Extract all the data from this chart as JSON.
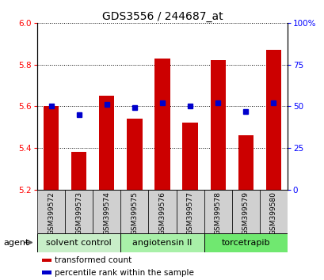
{
  "title": "GDS3556 / 244687_at",
  "samples": [
    "GSM399572",
    "GSM399573",
    "GSM399574",
    "GSM399575",
    "GSM399576",
    "GSM399577",
    "GSM399578",
    "GSM399579",
    "GSM399580"
  ],
  "transformed_counts": [
    5.6,
    5.38,
    5.65,
    5.54,
    5.83,
    5.52,
    5.82,
    5.46,
    5.87
  ],
  "percentile_ranks": [
    50,
    45,
    51,
    49,
    52,
    50,
    52,
    47,
    52
  ],
  "ylim_left": [
    5.2,
    6.0
  ],
  "ylim_right": [
    0,
    100
  ],
  "yticks_left": [
    5.2,
    5.4,
    5.6,
    5.8,
    6.0
  ],
  "ytick_labels_right": [
    "0",
    "25",
    "50",
    "75",
    "100%"
  ],
  "yticks_right": [
    0,
    25,
    50,
    75,
    100
  ],
  "bar_color": "#cc0000",
  "dot_color": "#0000cc",
  "groups": [
    {
      "label": "solvent control",
      "indices": [
        0,
        1,
        2
      ],
      "color": "#c8eec8"
    },
    {
      "label": "angiotensin II",
      "indices": [
        3,
        4,
        5
      ],
      "color": "#a8f0a8"
    },
    {
      "label": "torcetrapib",
      "indices": [
        6,
        7,
        8
      ],
      "color": "#70e870"
    }
  ],
  "agent_label": "agent",
  "legend_items": [
    {
      "label": "transformed count",
      "color": "#cc0000"
    },
    {
      "label": "percentile rank within the sample",
      "color": "#0000cc"
    }
  ],
  "bar_width": 0.55,
  "bar_bottom": 5.2,
  "label_bg": "#d0d0d0",
  "figsize": [
    4.1,
    3.54
  ],
  "dpi": 100
}
